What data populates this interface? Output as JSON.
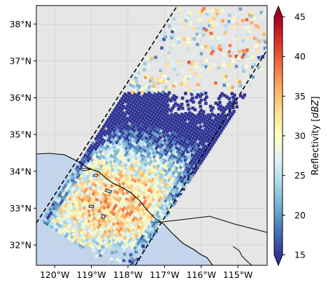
{
  "map": {
    "lat_ticks": [
      "32°N",
      "33°N",
      "34°N",
      "35°N",
      "36°N",
      "37°N",
      "38°N"
    ],
    "lon_ticks": [
      "120°W",
      "119°W",
      "118°W",
      "117°W",
      "116°W",
      "115°W"
    ],
    "extent": {
      "lon_min": -120.5,
      "lon_max": -114.2,
      "lat_min": 31.45,
      "lat_max": 38.5
    },
    "colors": {
      "land": "#e6e6e6",
      "ocean": "#c3d5ec",
      "grid": "#d2d2d2",
      "coast": "#000000",
      "swath_edge": "#000000"
    }
  },
  "swath": {
    "left_edge": [
      [
        -120.5,
        32.6
      ],
      [
        -116.65,
        38.5
      ]
    ],
    "right_edge": [
      [
        -117.8,
        31.45
      ],
      [
        -114.2,
        37.3
      ]
    ],
    "style": "dashed"
  },
  "colorbar": {
    "label": "Reflectivity [dBZ]",
    "label_main": "Reflectivity [",
    "label_unit": "dBZ",
    "label_close": "]",
    "cmap": "RdYlBu_r",
    "min": 15,
    "max": 45,
    "ticks": [
      "15",
      "20",
      "25",
      "30",
      "35",
      "40",
      "45"
    ],
    "extend": "both"
  }
}
